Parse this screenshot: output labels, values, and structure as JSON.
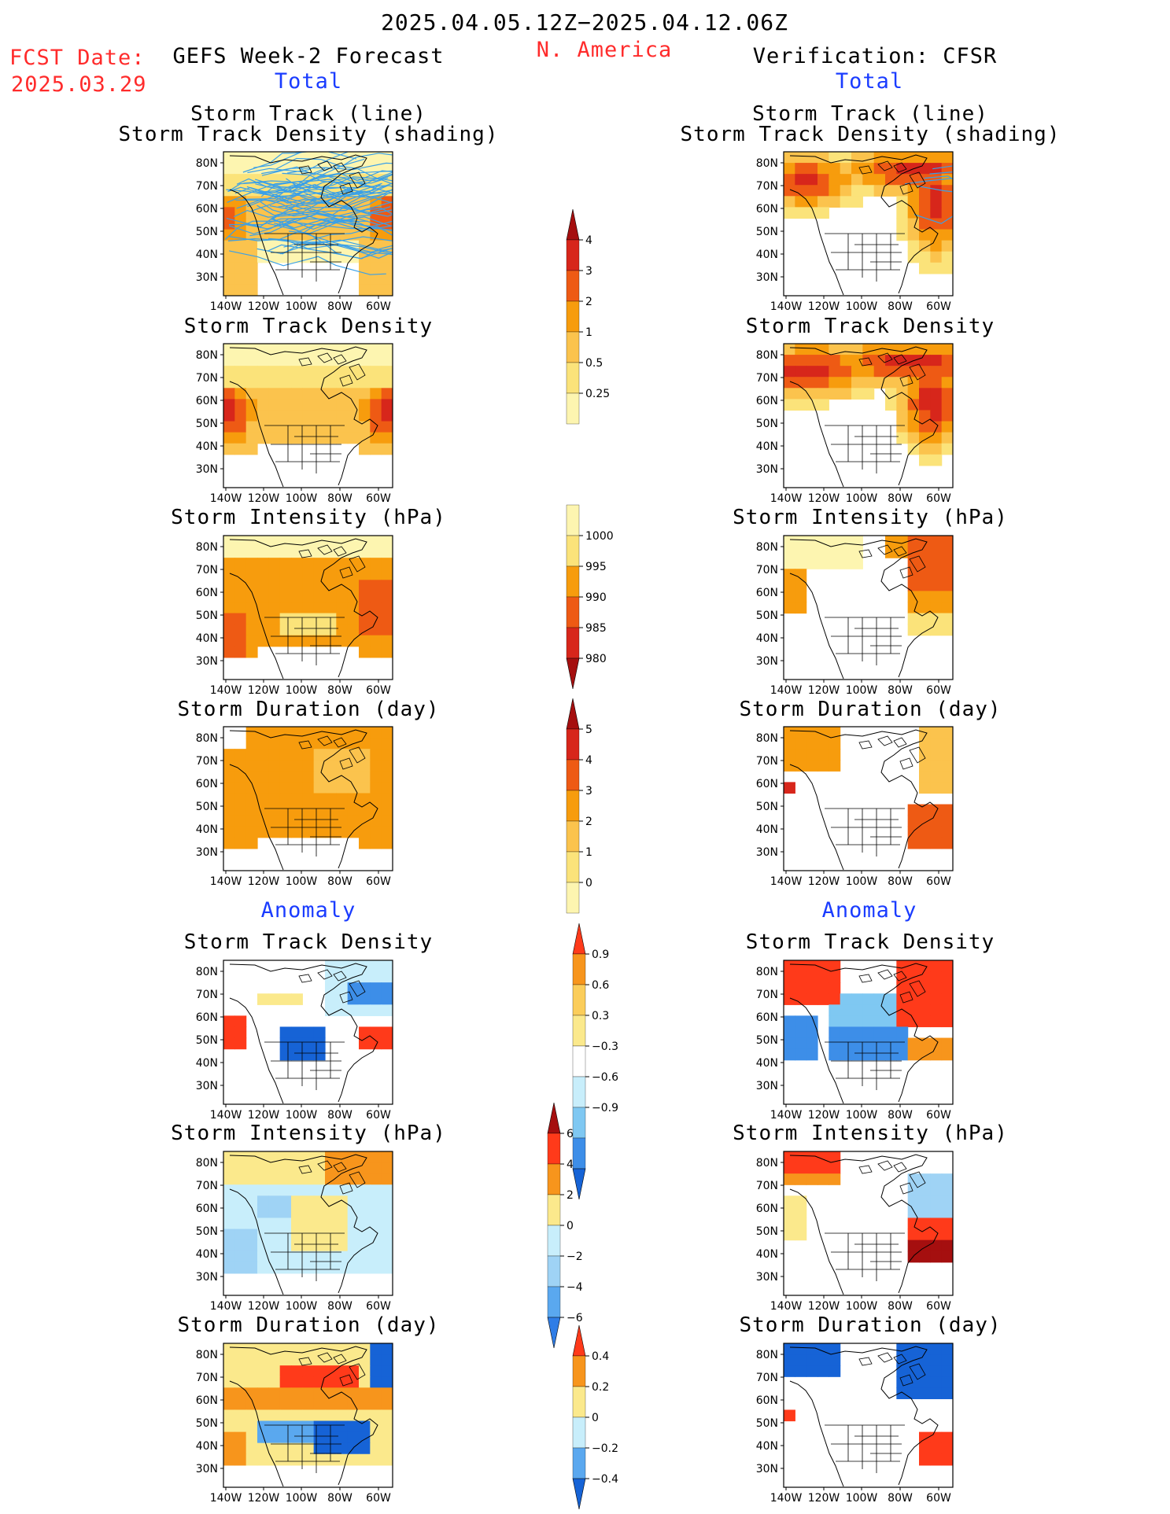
{
  "header": {
    "period": "2025.04.05.12Z−2025.04.12.06Z",
    "region": "N. America",
    "fcst_label": "FCST Date:",
    "fcst_date": "2025.03.29",
    "left_title": "GEFS Week-2 Forecast",
    "right_title": "Verification: CFSR",
    "left_total": "Total",
    "right_total": "Total",
    "left_anomaly": "Anomaly",
    "right_anomaly": "Anomaly"
  },
  "axes": {
    "lat_labels": [
      "80N",
      "70N",
      "60N",
      "50N",
      "40N",
      "30N"
    ],
    "lon_labels": [
      "140W",
      "120W",
      "100W",
      "80W",
      "60W"
    ]
  },
  "panels": {
    "track": {
      "title1": "Storm Track (line)",
      "title2": "Storm Track Density (shading)"
    },
    "density": {
      "title": "Storm Track Density"
    },
    "intensity": {
      "title": "Storm Intensity (hPa)"
    },
    "duration": {
      "title": "Storm Duration (day)"
    },
    "anom_density": {
      "title": "Storm Track Density"
    },
    "anom_intensity": {
      "title": "Storm Intensity (hPa)"
    },
    "anom_duration": {
      "title": "Storm Duration (day)"
    }
  },
  "colorbars": {
    "density": {
      "labels": [
        "4",
        "3",
        "2",
        "1",
        "0.5",
        "0.25"
      ],
      "colors": [
        "#a50f0f",
        "#d7261b",
        "#ee5a14",
        "#f79c0d",
        "#fbc34d",
        "#fbe37a",
        "#fdf5b0"
      ]
    },
    "intensity": {
      "labels": [
        "1000",
        "995",
        "990",
        "985",
        "980"
      ],
      "colors": [
        "#fdf5b0",
        "#fbe37a",
        "#f79c0d",
        "#ee5a14",
        "#d7261b",
        "#a50f0f"
      ]
    },
    "duration": {
      "labels": [
        "5",
        "4",
        "3",
        "2",
        "1",
        "0"
      ],
      "colors": [
        "#a50f0f",
        "#d7261b",
        "#ee5a14",
        "#f79c0d",
        "#fbc34d",
        "#fbe37a",
        "#fdf5b0"
      ]
    },
    "anom_density": {
      "labels": [
        "0.9",
        "0.6",
        "0.3",
        "−0.3",
        "−0.6",
        "−0.9"
      ],
      "colors": [
        "#ff3a1a",
        "#f7951c",
        "#fbcd5a",
        "#fbe98c",
        "#ffffff",
        "#c8eefb",
        "#7fc8f2",
        "#3d8ee8",
        "#1663d6"
      ]
    },
    "anom_intensity": {
      "labels": [
        "6",
        "4",
        "2",
        "0",
        "−2",
        "−4",
        "−6"
      ],
      "colors": [
        "#a50f0f",
        "#ff3a1a",
        "#f7951c",
        "#fbe98c",
        "#c8eefb",
        "#9fd3f5",
        "#5aa8ef",
        "#2f7de6"
      ]
    },
    "anom_duration": {
      "labels": [
        "0.4",
        "0.2",
        "0",
        "−0.2",
        "−0.4"
      ],
      "colors": [
        "#ff3a1a",
        "#f7951c",
        "#fbe98c",
        "#c8eefb",
        "#5aa8ef",
        "#1663d6"
      ]
    }
  },
  "colors": {
    "red_text": "#ff2b2b",
    "blue_text": "#1a3cff",
    "track_line": "#3aa0e8"
  }
}
